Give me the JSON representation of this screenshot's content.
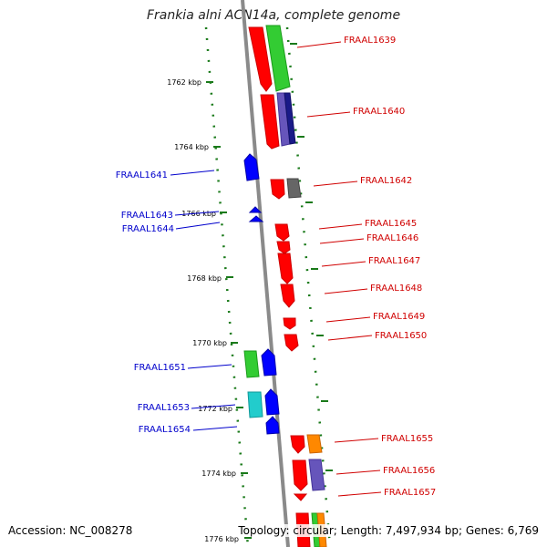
{
  "title": "Frankia alni ACN14a, complete genome",
  "footer": {
    "accession": "Accession: NC_008278",
    "summary": "Topology: circular; Length: 7,497,934 bp; Genes: 6,769"
  },
  "ticks": [
    "1762 kbp",
    "1764 kbp",
    "1766 kbp",
    "1768 kbp",
    "1770 kbp",
    "1772 kbp",
    "1774 kbp",
    "1776 kbp"
  ],
  "genes_right": [
    "FRAAL1639",
    "FRAAL1640",
    "FRAAL1642",
    "FRAAL1645",
    "FRAAL1646",
    "FRAAL1647",
    "FRAAL1648",
    "FRAAL1649",
    "FRAAL1650",
    "FRAAL1655",
    "FRAAL1656",
    "FRAAL1657"
  ],
  "genes_left": [
    "FRAAL1641",
    "FRAAL1643",
    "FRAAL1644",
    "FRAAL1651",
    "FRAAL1653",
    "FRAAL1654"
  ],
  "colors": {
    "forward": "#ff0000",
    "reverse": "#0000ff",
    "tick_green": "#1a7a1a",
    "backbone": "#888888"
  }
}
